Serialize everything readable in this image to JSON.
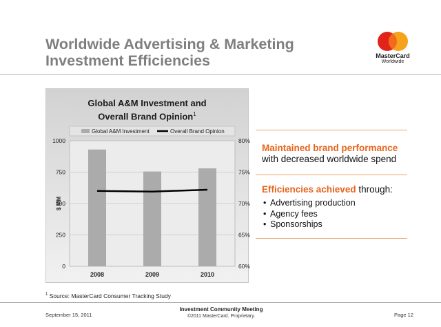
{
  "slide": {
    "title_line1": "Worldwide Advertising & Marketing",
    "title_line2": "Investment Efficiencies",
    "logo_text": "MasterCard",
    "logo_sub": "Worldwide"
  },
  "chart_data": {
    "type": "bar",
    "title": "Global A&M Investment and",
    "title_line2": "Overall Brand Opinion",
    "title_footnote_mark": "1",
    "categories": [
      "2008",
      "2009",
      "2010"
    ],
    "series": [
      {
        "name": "Global A&M Investment",
        "type": "bar",
        "axis": "left",
        "values": [
          930,
          755,
          780
        ],
        "color": "#ababab"
      },
      {
        "name": "Overall Brand Opinion",
        "type": "line",
        "axis": "right",
        "values": [
          72.0,
          71.9,
          72.2
        ],
        "color": "#000000"
      }
    ],
    "ylabel": "$ MM",
    "ylim": [
      0,
      1000
    ],
    "yticks": [
      "0",
      "250",
      "500",
      "750",
      "1000"
    ],
    "y2lim": [
      60,
      80
    ],
    "y2ticks": [
      "60%",
      "65%",
      "70%",
      "75%",
      "80%"
    ],
    "legend_position": "top",
    "grid": true
  },
  "panel": {
    "headline1_orange": "Maintained brand performance",
    "headline1_rest": "with decreased worldwide spend",
    "headline2_orange": "Efficiencies achieved",
    "headline2_rest": " through:",
    "bullets": [
      "Advertising production",
      "Agency fees",
      "Sponsorships"
    ]
  },
  "footer": {
    "source_mark": "1",
    "source_text": " Source: MasterCard Consumer Tracking Study",
    "date": "September 15, 2011",
    "meeting": "Investment Community Meeting",
    "copyright": "©2011 MasterCard. Proprietary.",
    "page": "Page 12"
  }
}
